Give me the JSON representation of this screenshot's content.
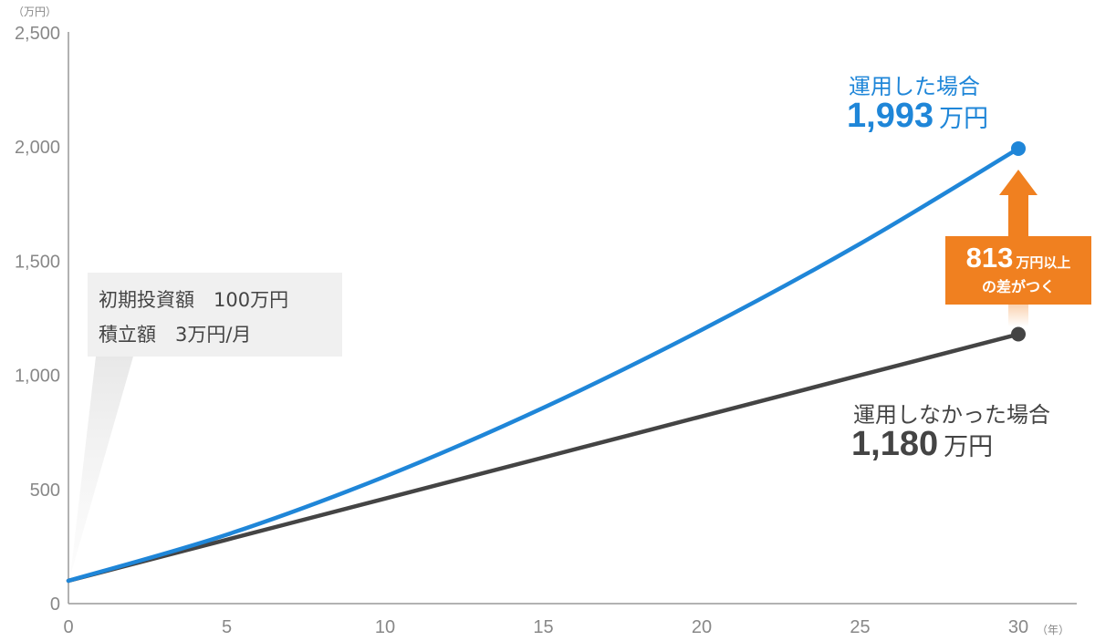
{
  "chart_data": {
    "type": "line",
    "x_unit": "（年）",
    "y_unit": "（万円）",
    "xlim": [
      0,
      30
    ],
    "ylim": [
      0,
      2500
    ],
    "x_ticks": [
      0,
      5,
      10,
      15,
      20,
      25,
      30
    ],
    "x_tick_labels": [
      "0",
      "5",
      "10",
      "15",
      "20",
      "25",
      "30"
    ],
    "y_ticks": [
      0,
      500,
      1000,
      1500,
      2000,
      2500
    ],
    "y_tick_labels": [
      "0",
      "500",
      "1,000",
      "1,500",
      "2,000",
      "2,500"
    ],
    "grid": false,
    "series": [
      {
        "name": "運用した場合",
        "color": "#1f86d8",
        "x": [
          0,
          5,
          10,
          15,
          20,
          25,
          30
        ],
        "values": [
          100,
          302,
          557,
          858,
          1199,
          1576,
          1993
        ]
      },
      {
        "name": "運用しなかった場合",
        "color": "#444444",
        "x": [
          0,
          5,
          10,
          15,
          20,
          25,
          30
        ],
        "values": [
          100,
          280,
          460,
          640,
          820,
          1000,
          1180
        ]
      }
    ],
    "annotations": {
      "invested": {
        "title": "運用した場合",
        "value": "1,993",
        "unit": "万円"
      },
      "not_invested": {
        "title": "運用しなかった場合",
        "value": "1,180",
        "unit": "万円"
      },
      "difference": {
        "value": "813",
        "unit": "万円以上",
        "text": "の差がつく"
      },
      "conditions": [
        "初期投資額　100万円",
        "積立額　3万円/月"
      ]
    }
  }
}
